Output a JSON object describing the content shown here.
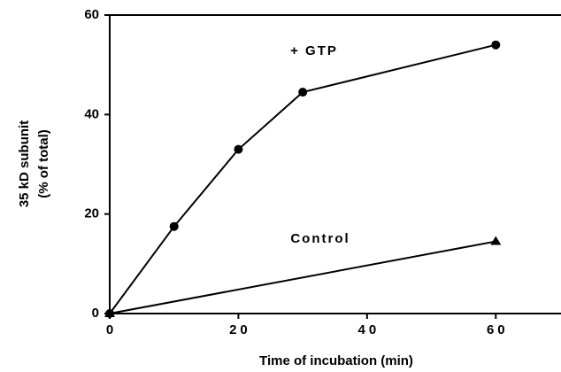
{
  "chart_data": {
    "type": "line",
    "xlabel": "Time of incubation (min)",
    "ylabel": [
      "35 kD  subunit",
      "(% of total)"
    ],
    "series": [
      {
        "name": "+ GTP",
        "color": "#000000",
        "marker": "circle",
        "x": [
          0,
          10,
          20,
          30,
          60
        ],
        "values": [
          0,
          17.5,
          33,
          44.5,
          54
        ]
      },
      {
        "name": "Control",
        "color": "#000000",
        "marker": "triangle",
        "x": [
          0,
          60
        ],
        "values": [
          0,
          14.5
        ]
      }
    ],
    "xlim": [
      0,
      70
    ],
    "xticks": [
      0,
      20,
      40,
      60
    ],
    "ylim": [
      0,
      60
    ],
    "yticks": [
      0,
      20,
      40,
      60
    ],
    "grid": false
  }
}
